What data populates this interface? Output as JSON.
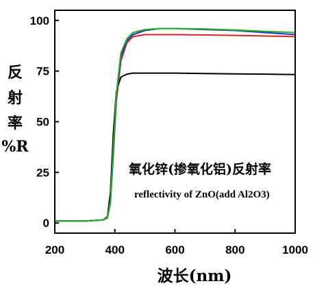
{
  "chart_data": {
    "type": "line",
    "title": "",
    "xlabel": "波长(nm)",
    "ylabel_lines": [
      "反",
      "射",
      "率",
      "%R"
    ],
    "annotation": {
      "cn": "氧化锌(掺氧化铝)反射率",
      "en": "reflectivity of ZnO(add Al2O3)"
    },
    "xlim": [
      200,
      1000
    ],
    "ylim": [
      -5,
      105
    ],
    "x_ticks": [
      "200",
      "400",
      "600",
      "800",
      "1000"
    ],
    "y_ticks": [
      "0",
      "25",
      "50",
      "75",
      "100"
    ],
    "grid": false,
    "x": [
      200,
      300,
      360,
      375,
      385,
      395,
      405,
      420,
      440,
      460,
      500,
      550,
      600,
      700,
      800,
      900,
      1000
    ],
    "series": [
      {
        "color": "#000000",
        "values": [
          1,
          1,
          1.5,
          3,
          15,
          45,
          65,
          72,
          73.5,
          74,
          74,
          74,
          74,
          73.8,
          73.6,
          73.5,
          73.3
        ]
      },
      {
        "color": "#e02020",
        "values": [
          1,
          1,
          1.5,
          2.5,
          10,
          35,
          60,
          80,
          89,
          92,
          93,
          93,
          93,
          92.8,
          92.6,
          92.3,
          92
        ]
      },
      {
        "color": "#2030d0",
        "values": [
          1,
          1,
          1.5,
          2.5,
          10,
          35,
          62,
          82,
          90,
          93,
          95,
          96,
          96,
          95.5,
          95,
          94,
          93
        ]
      },
      {
        "color": "#20b020",
        "values": [
          1,
          1,
          1.5,
          2.5,
          11,
          38,
          64,
          84,
          91,
          94,
          95.5,
          96,
          96,
          95.8,
          95.3,
          94.6,
          94
        ]
      }
    ]
  }
}
